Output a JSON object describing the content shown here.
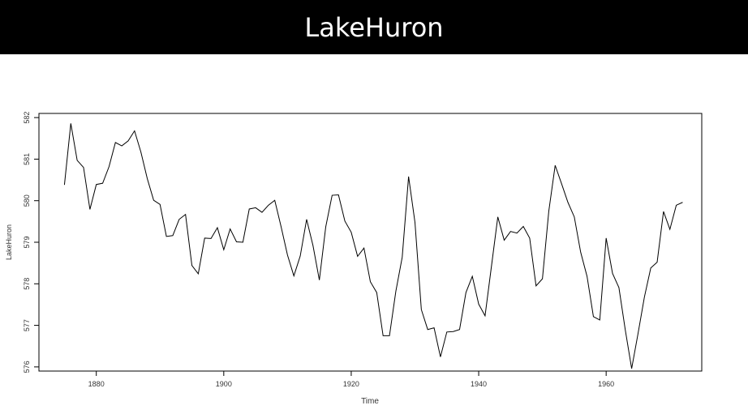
{
  "header": {
    "title": "LakeHuron"
  },
  "chart_data": {
    "type": "line",
    "title": "",
    "xlabel": "Time",
    "ylabel": "LakeHuron",
    "xlim": [
      1871,
      1975
    ],
    "ylim": [
      575.9,
      582.1
    ],
    "xticks": [
      1880,
      1900,
      1920,
      1940,
      1960
    ],
    "yticks": [
      576,
      577,
      578,
      579,
      580,
      581,
      582
    ],
    "grid": false,
    "x_start": 1875,
    "x_end": 1972,
    "series": [
      {
        "color": "#000000",
        "values": [
          580.38,
          581.86,
          580.97,
          580.8,
          579.79,
          580.39,
          580.42,
          580.82,
          581.4,
          581.32,
          581.44,
          581.68,
          581.17,
          580.53,
          580.01,
          579.91,
          579.14,
          579.16,
          579.55,
          579.67,
          578.44,
          578.24,
          579.1,
          579.09,
          579.35,
          578.82,
          579.32,
          579.01,
          579.0,
          579.8,
          579.83,
          579.72,
          579.89,
          580.01,
          579.37,
          578.69,
          578.19,
          578.67,
          579.55,
          578.92,
          578.09,
          579.37,
          580.13,
          580.14,
          579.51,
          579.24,
          578.66,
          578.86,
          578.05,
          577.79,
          576.75,
          576.75,
          577.82,
          578.64,
          580.58,
          579.48,
          577.38,
          576.9,
          576.94,
          576.24,
          576.84,
          576.85,
          576.9,
          577.79,
          578.18,
          577.51,
          577.23,
          578.42,
          579.61,
          579.05,
          579.26,
          579.22,
          579.38,
          579.1,
          577.95,
          578.12,
          579.75,
          580.85,
          580.41,
          579.96,
          579.61,
          578.76,
          578.18,
          577.21,
          577.13,
          579.1,
          578.25,
          577.91,
          576.89,
          575.96,
          576.8,
          577.68,
          578.38,
          578.52,
          579.74,
          579.31,
          579.89,
          579.96
        ]
      }
    ]
  }
}
